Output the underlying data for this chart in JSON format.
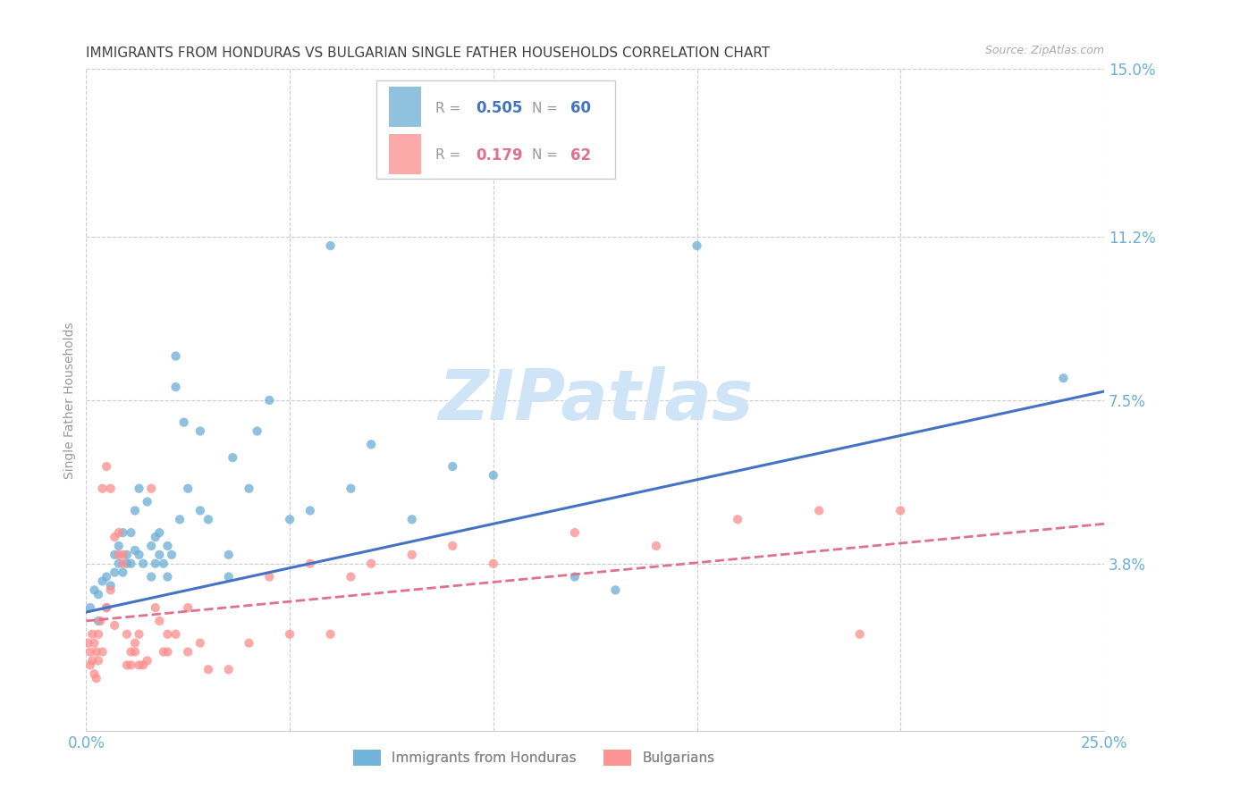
{
  "title": "IMMIGRANTS FROM HONDURAS VS BULGARIAN SINGLE FATHER HOUSEHOLDS CORRELATION CHART",
  "source": "Source: ZipAtlas.com",
  "ylabel": "Single Father Households",
  "xlim": [
    0.0,
    0.25
  ],
  "ylim": [
    0.0,
    0.15
  ],
  "ytick_labels_right": [
    "15.0%",
    "11.2%",
    "7.5%",
    "3.8%"
  ],
  "ytick_vals_right": [
    0.15,
    0.112,
    0.075,
    0.038
  ],
  "series1_label": "Immigrants from Honduras",
  "series2_label": "Bulgarians",
  "series1_color": "#6baed6",
  "series2_color": "#fc8d8d",
  "series1_scatter": [
    [
      0.001,
      0.028
    ],
    [
      0.002,
      0.032
    ],
    [
      0.003,
      0.031
    ],
    [
      0.003,
      0.025
    ],
    [
      0.004,
      0.034
    ],
    [
      0.005,
      0.035
    ],
    [
      0.005,
      0.028
    ],
    [
      0.006,
      0.033
    ],
    [
      0.007,
      0.036
    ],
    [
      0.007,
      0.04
    ],
    [
      0.008,
      0.038
    ],
    [
      0.008,
      0.042
    ],
    [
      0.009,
      0.036
    ],
    [
      0.009,
      0.045
    ],
    [
      0.01,
      0.04
    ],
    [
      0.01,
      0.038
    ],
    [
      0.011,
      0.045
    ],
    [
      0.011,
      0.038
    ],
    [
      0.012,
      0.041
    ],
    [
      0.012,
      0.05
    ],
    [
      0.013,
      0.04
    ],
    [
      0.013,
      0.055
    ],
    [
      0.014,
      0.038
    ],
    [
      0.015,
      0.052
    ],
    [
      0.016,
      0.035
    ],
    [
      0.016,
      0.042
    ],
    [
      0.017,
      0.038
    ],
    [
      0.017,
      0.044
    ],
    [
      0.018,
      0.045
    ],
    [
      0.018,
      0.04
    ],
    [
      0.019,
      0.038
    ],
    [
      0.02,
      0.042
    ],
    [
      0.02,
      0.035
    ],
    [
      0.021,
      0.04
    ],
    [
      0.022,
      0.078
    ],
    [
      0.022,
      0.085
    ],
    [
      0.023,
      0.048
    ],
    [
      0.024,
      0.07
    ],
    [
      0.025,
      0.055
    ],
    [
      0.028,
      0.05
    ],
    [
      0.028,
      0.068
    ],
    [
      0.03,
      0.048
    ],
    [
      0.035,
      0.035
    ],
    [
      0.035,
      0.04
    ],
    [
      0.036,
      0.062
    ],
    [
      0.04,
      0.055
    ],
    [
      0.042,
      0.068
    ],
    [
      0.045,
      0.075
    ],
    [
      0.05,
      0.048
    ],
    [
      0.055,
      0.05
    ],
    [
      0.06,
      0.11
    ],
    [
      0.065,
      0.055
    ],
    [
      0.07,
      0.065
    ],
    [
      0.08,
      0.048
    ],
    [
      0.09,
      0.06
    ],
    [
      0.1,
      0.058
    ],
    [
      0.12,
      0.035
    ],
    [
      0.13,
      0.032
    ],
    [
      0.15,
      0.11
    ],
    [
      0.24,
      0.08
    ]
  ],
  "series2_scatter": [
    [
      0.0005,
      0.02
    ],
    [
      0.001,
      0.015
    ],
    [
      0.001,
      0.018
    ],
    [
      0.0015,
      0.016
    ],
    [
      0.0015,
      0.022
    ],
    [
      0.002,
      0.013
    ],
    [
      0.002,
      0.02
    ],
    [
      0.0025,
      0.018
    ],
    [
      0.0025,
      0.012
    ],
    [
      0.003,
      0.016
    ],
    [
      0.003,
      0.022
    ],
    [
      0.0035,
      0.025
    ],
    [
      0.004,
      0.018
    ],
    [
      0.004,
      0.055
    ],
    [
      0.005,
      0.06
    ],
    [
      0.005,
      0.028
    ],
    [
      0.006,
      0.055
    ],
    [
      0.006,
      0.032
    ],
    [
      0.007,
      0.024
    ],
    [
      0.007,
      0.044
    ],
    [
      0.008,
      0.045
    ],
    [
      0.008,
      0.04
    ],
    [
      0.009,
      0.04
    ],
    [
      0.009,
      0.038
    ],
    [
      0.01,
      0.022
    ],
    [
      0.01,
      0.015
    ],
    [
      0.011,
      0.015
    ],
    [
      0.011,
      0.018
    ],
    [
      0.012,
      0.02
    ],
    [
      0.012,
      0.018
    ],
    [
      0.013,
      0.022
    ],
    [
      0.013,
      0.015
    ],
    [
      0.014,
      0.015
    ],
    [
      0.015,
      0.016
    ],
    [
      0.016,
      0.055
    ],
    [
      0.017,
      0.028
    ],
    [
      0.018,
      0.025
    ],
    [
      0.019,
      0.018
    ],
    [
      0.02,
      0.018
    ],
    [
      0.02,
      0.022
    ],
    [
      0.022,
      0.022
    ],
    [
      0.025,
      0.028
    ],
    [
      0.025,
      0.018
    ],
    [
      0.028,
      0.02
    ],
    [
      0.03,
      0.014
    ],
    [
      0.035,
      0.014
    ],
    [
      0.04,
      0.02
    ],
    [
      0.045,
      0.035
    ],
    [
      0.05,
      0.022
    ],
    [
      0.055,
      0.038
    ],
    [
      0.06,
      0.022
    ],
    [
      0.065,
      0.035
    ],
    [
      0.07,
      0.038
    ],
    [
      0.08,
      0.04
    ],
    [
      0.09,
      0.042
    ],
    [
      0.1,
      0.038
    ],
    [
      0.12,
      0.045
    ],
    [
      0.14,
      0.042
    ],
    [
      0.16,
      0.048
    ],
    [
      0.18,
      0.05
    ],
    [
      0.19,
      0.022
    ],
    [
      0.2,
      0.05
    ]
  ],
  "trend1": {
    "x_start": 0.0,
    "y_start": 0.027,
    "x_end": 0.25,
    "y_end": 0.077
  },
  "trend2": {
    "x_start": 0.0,
    "y_start": 0.025,
    "x_end": 0.25,
    "y_end": 0.047
  },
  "trend1_color": "#4472c4",
  "trend2_color": "#e07090",
  "background_color": "#ffffff",
  "grid_color": "#cccccc",
  "title_color": "#404040",
  "axis_label_color": "#6baed6",
  "watermark_text": "ZIPatlas",
  "watermark_color": "#d0e4f7"
}
